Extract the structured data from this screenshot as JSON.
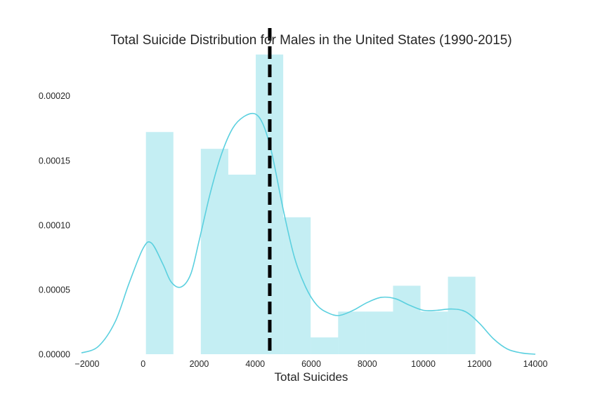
{
  "chart_data": {
    "type": "histogram",
    "title": "Total Suicide Distribution for Males in the United States (1990-2015)",
    "xlabel": "Total Suicides",
    "ylabel": "",
    "xlim": [
      -2400,
      14400
    ],
    "ylim": [
      0,
      0.00024
    ],
    "x_ticks": [
      -2000,
      0,
      2000,
      4000,
      6000,
      8000,
      10000,
      12000,
      14000
    ],
    "x_tick_labels": [
      "−2000",
      "0",
      "2000",
      "4000",
      "6000",
      "8000",
      "10000",
      "12000",
      "14000"
    ],
    "y_ticks": [
      0,
      5e-05,
      0.0001,
      0.00015,
      0.0002
    ],
    "y_tick_labels": [
      "0.00000",
      "0.00005",
      "0.00010",
      "0.00015",
      "0.00020"
    ],
    "grid": false,
    "bars": [
      {
        "x0": 100,
        "x1": 1080,
        "height": 0.000172
      },
      {
        "x0": 1080,
        "x1": 2060,
        "height": 0
      },
      {
        "x0": 2060,
        "x1": 3040,
        "height": 0.000159
      },
      {
        "x0": 3040,
        "x1": 4020,
        "height": 0.000139
      },
      {
        "x0": 4020,
        "x1": 5000,
        "height": 0.000232
      },
      {
        "x0": 5000,
        "x1": 5980,
        "height": 0.000106
      },
      {
        "x0": 5980,
        "x1": 6960,
        "height": 1.3e-05
      },
      {
        "x0": 6960,
        "x1": 7940,
        "height": 3.3e-05
      },
      {
        "x0": 7940,
        "x1": 8920,
        "height": 3.3e-05
      },
      {
        "x0": 8920,
        "x1": 9900,
        "height": 5.3e-05
      },
      {
        "x0": 9900,
        "x1": 10880,
        "height": 3.3e-05
      },
      {
        "x0": 10880,
        "x1": 11860,
        "height": 6e-05
      }
    ],
    "kde": {
      "x": [
        -2200,
        -1600,
        -1000,
        -500,
        0,
        300,
        700,
        1000,
        1350,
        1700,
        2000,
        2400,
        2800,
        3200,
        3600,
        4000,
        4300,
        4600,
        5000,
        5400,
        5800,
        6200,
        6600,
        7000,
        7500,
        8000,
        8500,
        9000,
        9500,
        10000,
        10500,
        11000,
        11500,
        12000,
        12500,
        13000,
        13500,
        14000
      ],
      "y": [
        1e-06,
        6e-06,
        2.5e-05,
        5.5e-05,
        8.2e-05,
        8.6e-05,
        7e-05,
        5.6e-05,
        5.2e-05,
        6.2e-05,
        8.8e-05,
        0.000125,
        0.000155,
        0.000175,
        0.000184,
        0.000186,
        0.000177,
        0.000155,
        0.000112,
        7.5e-05,
        5.2e-05,
        3.8e-05,
        3.2e-05,
        3e-05,
        3.4e-05,
        4e-05,
        4.4e-05,
        4.3e-05,
        3.8e-05,
        3.4e-05,
        3.4e-05,
        3.5e-05,
        3.3e-05,
        2.4e-05,
        1.2e-05,
        4e-06,
        1e-06,
        0
      ]
    },
    "mean_line": {
      "x": 4520,
      "style": "dashed",
      "color": "#000000"
    },
    "colors": {
      "bars": "#5bd0df",
      "kde": "#5bd0df",
      "text": "#262626"
    }
  }
}
